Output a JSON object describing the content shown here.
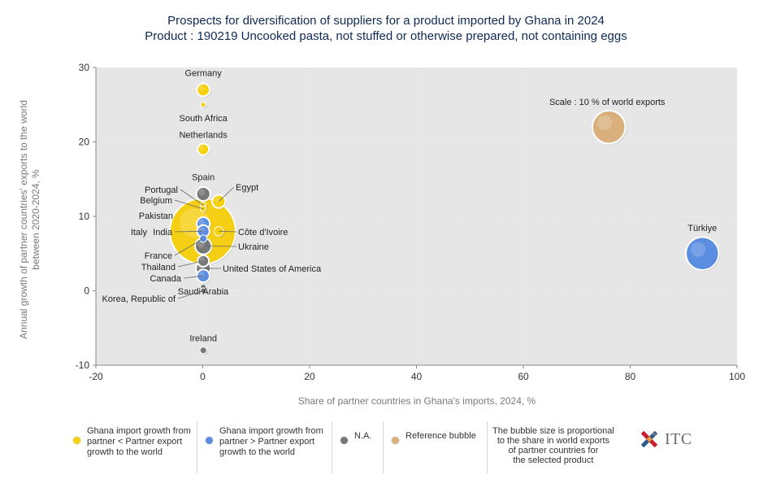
{
  "header": {
    "title_line1": "Prospects for diversification of suppliers for a product imported by Ghana in 2024",
    "title_line2": "Product : 190219 Uncooked pasta, not stuffed or otherwise prepared, not containing eggs"
  },
  "colors": {
    "import_lt_export": "#f5cf0a",
    "import_gt_export": "#5b8de0",
    "na": "#777777",
    "reference": "#d9b07c",
    "plot_bg": "#e6e6e6"
  },
  "legend": {
    "item1": "Ghana import growth from\npartner < Partner export\ngrowth to the world",
    "item2": "Ghana import growth from\npartner > Partner export\ngrowth to the world",
    "item3": "N.A.",
    "item4": "Reference bubble",
    "note": "The bubble size is proportional\nto the share in world exports\nof partner countries for\nthe selected product",
    "logo_text": "ITC"
  },
  "chart_data": {
    "type": "scatter",
    "title": "Prospects for diversification of suppliers for a product imported by Ghana in 2024",
    "subtitle": "Product : 190219 Uncooked pasta, not stuffed or otherwise prepared, not containing eggs",
    "xlabel": "Share of partner countries in Ghana's imports, 2024, %",
    "ylabel": "Annual growth of partner countries' exports to the world between 2020-2024, %",
    "xlim": [
      -20,
      100
    ],
    "ylim": [
      -10,
      30
    ],
    "xticks": [
      -20,
      0,
      20,
      40,
      60,
      80,
      100
    ],
    "yticks": [
      -10,
      0,
      10,
      20,
      30
    ],
    "grid": true,
    "points": [
      {
        "label": "Germany",
        "x": 0.1,
        "y": 27,
        "size": 1.5,
        "category": "import_lt_export"
      },
      {
        "label": "South Africa",
        "x": 0.1,
        "y": 25,
        "size": 0.2,
        "category": "import_lt_export"
      },
      {
        "label": "Netherlands",
        "x": 0.1,
        "y": 19,
        "size": 1.2,
        "category": "import_lt_export"
      },
      {
        "label": "Spain",
        "x": 0.1,
        "y": 13,
        "size": 1.8,
        "category": "na"
      },
      {
        "label": "Egypt",
        "x": 3,
        "y": 12,
        "size": 1.6,
        "category": "import_lt_export"
      },
      {
        "label": "Portugal",
        "x": 0.1,
        "y": 11.5,
        "size": 0.3,
        "category": "import_lt_export"
      },
      {
        "label": "Belgium",
        "x": 0.1,
        "y": 11,
        "size": 0.3,
        "category": "import_lt_export"
      },
      {
        "label": "Pakistan",
        "x": 0.1,
        "y": 9,
        "size": 1.6,
        "category": "import_gt_export"
      },
      {
        "label": "Italy",
        "x": 0,
        "y": 8,
        "size": 40,
        "category": "import_lt_export"
      },
      {
        "label": "India",
        "x": 0.1,
        "y": 8,
        "size": 1.4,
        "category": "import_gt_export"
      },
      {
        "label": "Côte d'Ivoire",
        "x": 3,
        "y": 8,
        "size": 0.8,
        "category": "import_lt_export"
      },
      {
        "label": "France",
        "x": 0.1,
        "y": 7,
        "size": 0.5,
        "category": "import_gt_export"
      },
      {
        "label": "Ukraine",
        "x": 0.1,
        "y": 6,
        "size": 2.5,
        "category": "na"
      },
      {
        "label": "Thailand",
        "x": 0.1,
        "y": 4,
        "size": 1.2,
        "category": "na"
      },
      {
        "label": "United States of America",
        "x": 0.1,
        "y": 3,
        "size": 2,
        "category": "na"
      },
      {
        "label": "Canada",
        "x": 0.1,
        "y": 2,
        "size": 1.5,
        "category": "import_gt_export"
      },
      {
        "label": "Saudi Arabia",
        "x": 0.1,
        "y": 0.5,
        "size": 0.3,
        "category": "na"
      },
      {
        "label": "Korea, Republic of",
        "x": 0.1,
        "y": 0,
        "size": 0.3,
        "category": "na"
      },
      {
        "label": "Ireland",
        "x": 0.1,
        "y": -8,
        "size": 0.4,
        "category": "na"
      },
      {
        "label": "Türkiye",
        "x": 93.5,
        "y": 5,
        "size": 10,
        "category": "import_gt_export"
      },
      {
        "label": "Scale : 10 % of world exports",
        "x": 76,
        "y": 22,
        "size": 10,
        "category": "reference"
      }
    ]
  }
}
